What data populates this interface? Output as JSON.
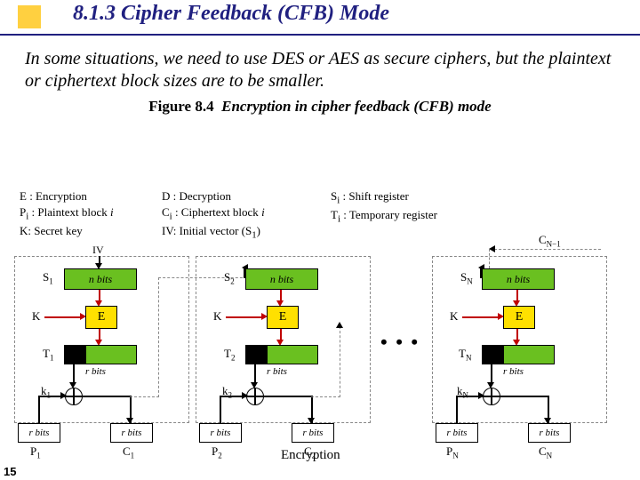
{
  "title": "8.1.3  Cipher Feedback (CFB) Mode",
  "body": "In some situations, we need to use DES or AES as secure ciphers, but the plaintext or ciphertext block sizes are to be smaller.",
  "figure": {
    "num": "Figure 8.4",
    "caption": "Encryption in cipher feedback (CFB) mode"
  },
  "legend": {
    "c1": [
      "E : Encryption",
      "P<sub>i</sub> : Plaintext block <i>i</i>",
      "K: Secret key"
    ],
    "c2": [
      "D :  Decryption",
      "C<sub>i</sub> : Ciphertext block <i>i</i>",
      "IV: Initial vector (S<sub>1</sub>)"
    ],
    "c3": [
      "S<sub>i</sub> :  Shift register",
      "T<sub>i</sub> :  Temporary register"
    ]
  },
  "labels": {
    "nbits": "n bits",
    "rbits": "r bits",
    "E": "E",
    "K": "K",
    "IV": "IV",
    "encryption": "Encryption",
    "cn1": "C<sub>N−1</sub>"
  },
  "stages": [
    {
      "S": "S<sub>1</sub>",
      "T": "T<sub>1</sub>",
      "k": "k<sub>1</sub>",
      "P": "P<sub>1</sub>",
      "C": "C<sub>1</sub>"
    },
    {
      "S": "S<sub>2</sub>",
      "T": "T<sub>2</sub>",
      "k": "k<sub>2</sub>",
      "P": "P<sub>2</sub>",
      "C": "C<sub>2</sub>"
    },
    {
      "S": "S<sub>N</sub>",
      "T": "T<sub>N</sub>",
      "k": "k<sub>N</sub>",
      "P": "P<sub>N</sub>",
      "C": "C<sub>N</sub>"
    }
  ],
  "page": "15",
  "colors": {
    "title_underline": "#202080",
    "title_square": "#ffd040",
    "green": "#6ac020",
    "yellow": "#ffe000",
    "red": "#c00000",
    "dash": "#888888"
  }
}
